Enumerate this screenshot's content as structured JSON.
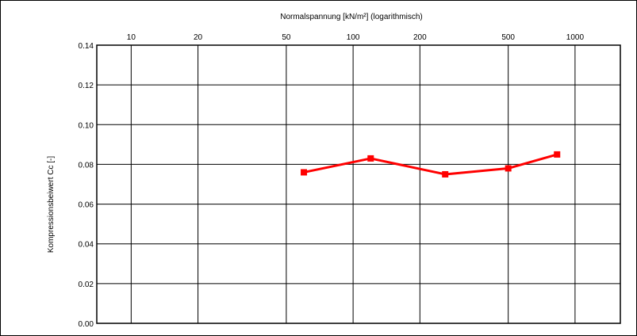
{
  "chart_data": {
    "type": "line",
    "title": "",
    "xlabel": "Normalspannung [kN/m²] (logarithmisch)",
    "ylabel": "Kompressionsbeiwert Cc [-]",
    "x_scale": "log",
    "x_axis_position": "top",
    "xlim": [
      7,
      1600
    ],
    "ylim": [
      0.0,
      0.14
    ],
    "x_ticks": [
      10,
      20,
      50,
      100,
      200,
      500,
      1000
    ],
    "x_tick_labels": [
      "10",
      "20",
      "50",
      "100",
      "200",
      "500",
      "1000"
    ],
    "y_ticks": [
      0.0,
      0.02,
      0.04,
      0.06,
      0.08,
      0.1,
      0.12,
      0.14
    ],
    "y_tick_labels": [
      "0.00",
      "0.02",
      "0.04",
      "0.06",
      "0.08",
      "0.10",
      "0.12",
      "0.14"
    ],
    "grid": true,
    "series": [
      {
        "color": "#ff0000",
        "x": [
          60,
          120,
          260,
          500,
          830
        ],
        "y": [
          0.076,
          0.083,
          0.075,
          0.078,
          0.085
        ]
      }
    ]
  }
}
